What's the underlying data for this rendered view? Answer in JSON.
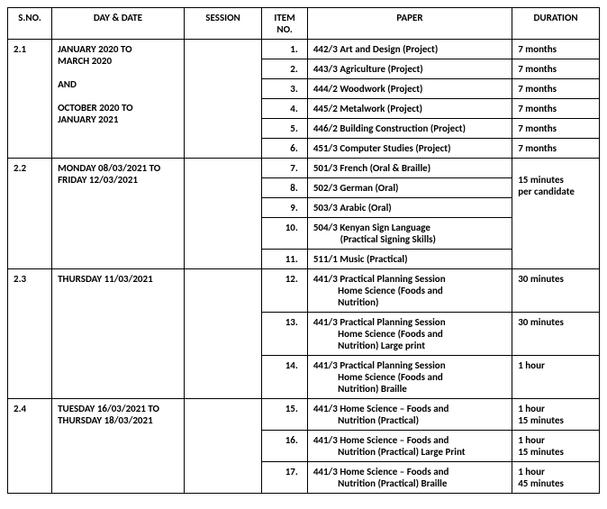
{
  "headers": {
    "sno": "S.NO.",
    "date": "DAY & DATE",
    "session": "SESSION",
    "itemno": "ITEM NO.",
    "paper": "PAPER",
    "duration": "DURATION"
  },
  "sections": [
    {
      "sno": "2.1",
      "date_html": "JANUARY 2020 TO<br>MARCH 2020<br><br>AND<br><br>OCTOBER 2020 TO<br>JANUARY 2021",
      "session": "",
      "duration_shared": null,
      "rows": [
        {
          "no": "1.",
          "paper": "442/3  Art and Design  (Project)",
          "dur": "7 months"
        },
        {
          "no": "2.",
          "paper": "443/3  Agriculture (Project)",
          "dur": "7 months"
        },
        {
          "no": "3.",
          "paper": "444/2  Woodwork (Project)",
          "dur": "7 months"
        },
        {
          "no": "4.",
          "paper": "445/2  Metalwork (Project)",
          "dur": "7 months"
        },
        {
          "no": "5.",
          "paper": "446/2 Building Construction (Project)",
          "dur": "7 months"
        },
        {
          "no": "6.",
          "paper": "451/3  Computer Studies (Project)",
          "dur": "7 months"
        }
      ]
    },
    {
      "sno": "2.2",
      "date_html": "MONDAY 08/03/2021 TO FRIDAY 12/03/2021",
      "session": "",
      "duration_shared_html": "<br>15 minutes<br>per candidate",
      "rows": [
        {
          "no": "7.",
          "paper": "501/3  French (Oral & Braille)"
        },
        {
          "no": "8.",
          "paper": "502/3  German (Oral)"
        },
        {
          "no": "9.",
          "paper": "503/3  Arabic (Oral)"
        },
        {
          "no": "10.",
          "paper": "504/3  Kenyan Sign Language<br>&nbsp;&nbsp;&nbsp;&nbsp;&nbsp;&nbsp;&nbsp;&nbsp;&nbsp;&nbsp;&nbsp;&nbsp;(Practical Signing Skills)"
        },
        {
          "no": "11.",
          "paper": "511/1  Music (Practical)"
        }
      ]
    },
    {
      "sno": "2.3",
      "date_html": "THURSDAY 11/03/2021",
      "session": "",
      "duration_shared": null,
      "rows": [
        {
          "no": "12.",
          "paper": "441/3  Practical Planning Session<br>&nbsp;&nbsp;&nbsp;&nbsp;&nbsp;&nbsp;&nbsp;&nbsp;&nbsp;&nbsp;&nbsp;Home Science  (Foods and<br>&nbsp;&nbsp;&nbsp;&nbsp;&nbsp;&nbsp;&nbsp;&nbsp;&nbsp;&nbsp;&nbsp;Nutrition)",
          "dur": "30 minutes"
        },
        {
          "no": "13.",
          "paper": "441/3  Practical Planning Session<br>&nbsp;&nbsp;&nbsp;&nbsp;&nbsp;&nbsp;&nbsp;&nbsp;&nbsp;&nbsp;&nbsp;Home Science  (Foods and<br>&nbsp;&nbsp;&nbsp;&nbsp;&nbsp;&nbsp;&nbsp;&nbsp;&nbsp;&nbsp;&nbsp;Nutrition)  Large print",
          "dur": "30 minutes"
        },
        {
          "no": "14.",
          "paper": "441/3  Practical Planning Session<br>&nbsp;&nbsp;&nbsp;&nbsp;&nbsp;&nbsp;&nbsp;&nbsp;&nbsp;&nbsp;&nbsp;Home Science  (Foods and<br>&nbsp;&nbsp;&nbsp;&nbsp;&nbsp;&nbsp;&nbsp;&nbsp;&nbsp;&nbsp;&nbsp;Nutrition)  Braille",
          "dur": "1 hour"
        }
      ]
    },
    {
      "sno": "2.4",
      "date_html": "TUESDAY 16/03/2021 TO THURSDAY 18/03/2021",
      "session": "",
      "duration_shared": null,
      "rows": [
        {
          "no": "15.",
          "paper": "441/3  Home Science – Foods and<br>&nbsp;&nbsp;&nbsp;&nbsp;&nbsp;&nbsp;&nbsp;&nbsp;&nbsp;&nbsp;&nbsp;Nutrition (Practical)",
          "dur": "1 hour<br>15 minutes"
        },
        {
          "no": "16.",
          "paper": "441/3  Home Science – Foods and<br>&nbsp;&nbsp;&nbsp;&nbsp;&nbsp;&nbsp;&nbsp;&nbsp;&nbsp;&nbsp;&nbsp;Nutrition (Practical) Large Print",
          "dur": "1 hour<br>15 minutes"
        },
        {
          "no": "17.",
          "paper": "441/3  Home Science – Foods and<br>&nbsp;&nbsp;&nbsp;&nbsp;&nbsp;&nbsp;&nbsp;&nbsp;&nbsp;&nbsp;&nbsp;Nutrition (Practical)   Braille",
          "dur": "1 hour<br>45 minutes"
        }
      ]
    }
  ]
}
